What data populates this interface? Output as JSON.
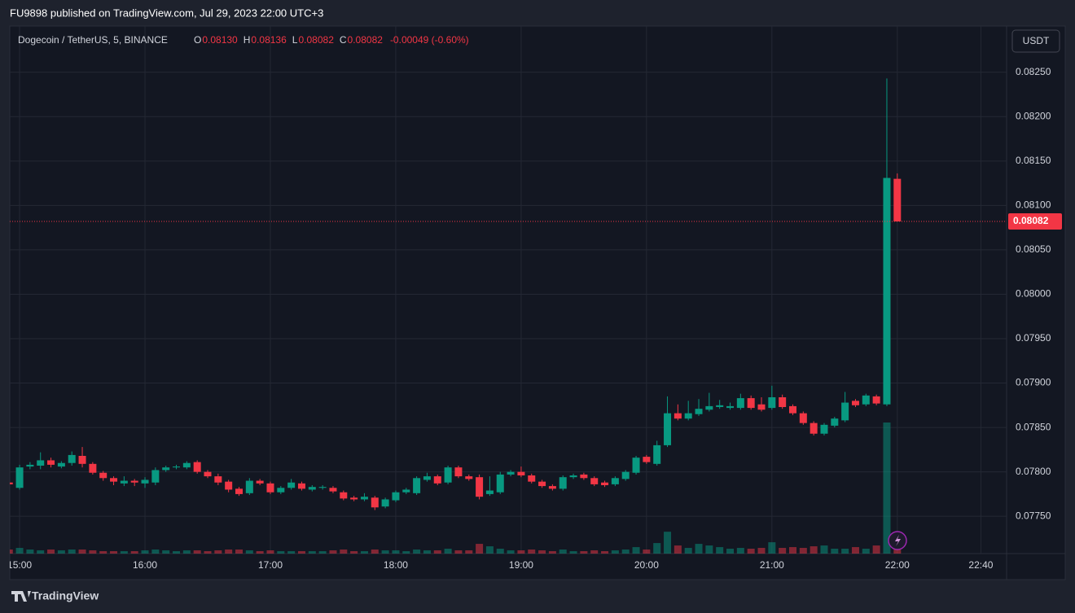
{
  "header": {
    "publisher": "FU9898 published on TradingView.com, Jul 29, 2023 22:00 UTC+3"
  },
  "footer": {
    "brand": "TradingView"
  },
  "chart_data": {
    "type": "candlestick",
    "symbol": "Dogecoin / TetherUS, 5, BINANCE",
    "legend": {
      "open_key": "O",
      "open": "0.08130",
      "high_key": "H",
      "high": "0.08136",
      "low_key": "L",
      "low": "0.08082",
      "close_key": "C",
      "close": "0.08082",
      "change": "-0.00049 (-0.60%)"
    },
    "currency": "USDT",
    "up_color": "#089981",
    "down_color": "#f23645",
    "last_price": {
      "value": 0.08082,
      "label": "0.08082"
    },
    "xlim": [
      895.3,
      1372.3
    ],
    "ylim": [
      0.07708,
      0.08302
    ],
    "xticks": [
      {
        "value": 900,
        "label": "15:00"
      },
      {
        "value": 960,
        "label": "16:00"
      },
      {
        "value": 1020,
        "label": "17:00"
      },
      {
        "value": 1080,
        "label": "18:00"
      },
      {
        "value": 1140,
        "label": "19:00"
      },
      {
        "value": 1200,
        "label": "20:00"
      },
      {
        "value": 1260,
        "label": "21:00"
      },
      {
        "value": 1320,
        "label": "22:00"
      },
      {
        "value": 1360,
        "label": "22:40"
      }
    ],
    "yticks": [
      {
        "value": 0.0775,
        "label": "0.07750"
      },
      {
        "value": 0.078,
        "label": "0.07800"
      },
      {
        "value": 0.0785,
        "label": "0.07850"
      },
      {
        "value": 0.079,
        "label": "0.07900"
      },
      {
        "value": 0.0795,
        "label": "0.07950"
      },
      {
        "value": 0.08,
        "label": "0.08000"
      },
      {
        "value": 0.0805,
        "label": "0.08050"
      },
      {
        "value": 0.081,
        "label": "0.08100"
      },
      {
        "value": 0.0815,
        "label": "0.08150"
      },
      {
        "value": 0.082,
        "label": "0.08200"
      },
      {
        "value": 0.0825,
        "label": "0.08250"
      }
    ],
    "grid": true,
    "x": [
      895,
      900,
      905,
      910,
      915,
      920,
      925,
      930,
      935,
      940,
      945,
      950,
      955,
      960,
      965,
      970,
      975,
      980,
      985,
      990,
      995,
      1000,
      1005,
      1010,
      1015,
      1020,
      1025,
      1030,
      1035,
      1040,
      1045,
      1050,
      1055,
      1060,
      1065,
      1070,
      1075,
      1080,
      1085,
      1090,
      1095,
      1100,
      1105,
      1110,
      1115,
      1120,
      1125,
      1130,
      1135,
      1140,
      1145,
      1150,
      1155,
      1160,
      1165,
      1170,
      1175,
      1180,
      1185,
      1190,
      1195,
      1200,
      1205,
      1210,
      1215,
      1220,
      1225,
      1230,
      1235,
      1240,
      1245,
      1250,
      1255,
      1260,
      1265,
      1270,
      1275,
      1280,
      1285,
      1290,
      1295,
      1300,
      1305,
      1310,
      1315,
      1320
    ],
    "open": [
      0.07788,
      0.07782,
      0.07806,
      0.07807,
      0.07813,
      0.07806,
      0.0781,
      0.07818,
      0.07809,
      0.07799,
      0.07793,
      0.07787,
      0.0779,
      0.07787,
      0.07788,
      0.07802,
      0.07805,
      0.07805,
      0.07811,
      0.078,
      0.07795,
      0.07789,
      0.07781,
      0.07776,
      0.0779,
      0.07787,
      0.07777,
      0.07782,
      0.07787,
      0.0778,
      0.07782,
      0.07782,
      0.07777,
      0.07771,
      0.07769,
      0.07771,
      0.07761,
      0.07768,
      0.07777,
      0.07776,
      0.07791,
      0.07795,
      0.07788,
      0.07805,
      0.07795,
      0.07794,
      0.07775,
      0.07777,
      0.07797,
      0.078,
      0.07796,
      0.07789,
      0.07784,
      0.07781,
      0.07794,
      0.07797,
      0.07793,
      0.07788,
      0.07786,
      0.07792,
      0.07799,
      0.07817,
      0.07809,
      0.0783,
      0.07866,
      0.0786,
      0.07865,
      0.0787,
      0.07873,
      0.07872,
      0.07872,
      0.07883,
      0.07876,
      0.07872,
      0.07884,
      0.07874,
      0.07866,
      0.07855,
      0.07843,
      0.07852,
      0.07858,
      0.0788,
      0.07876,
      0.07885,
      0.07876,
      0.0813
    ],
    "close": [
      0.07786,
      0.07805,
      0.07808,
      0.07813,
      0.07808,
      0.0781,
      0.07819,
      0.07809,
      0.07799,
      0.07793,
      0.07789,
      0.0779,
      0.07788,
      0.07791,
      0.07802,
      0.07805,
      0.07806,
      0.0781,
      0.078,
      0.07795,
      0.07788,
      0.0778,
      0.07775,
      0.0779,
      0.07787,
      0.07777,
      0.07782,
      0.07788,
      0.07781,
      0.07783,
      0.07783,
      0.07778,
      0.0777,
      0.07769,
      0.07772,
      0.0776,
      0.07769,
      0.07777,
      0.0778,
      0.07793,
      0.07795,
      0.07787,
      0.07805,
      0.07795,
      0.07792,
      0.07772,
      0.07779,
      0.07797,
      0.078,
      0.07796,
      0.07789,
      0.07784,
      0.07781,
      0.07794,
      0.07796,
      0.07793,
      0.07786,
      0.07785,
      0.07793,
      0.078,
      0.07816,
      0.07811,
      0.0783,
      0.07866,
      0.0786,
      0.07866,
      0.07871,
      0.07874,
      0.07875,
      0.07874,
      0.07883,
      0.07872,
      0.0787,
      0.07884,
      0.07873,
      0.07866,
      0.07855,
      0.07843,
      0.07853,
      0.0786,
      0.07878,
      0.07875,
      0.07886,
      0.07877,
      0.08131,
      0.08082
    ],
    "high": [
      0.07791,
      0.07808,
      0.07811,
      0.07822,
      0.07816,
      0.07812,
      0.07823,
      0.07828,
      0.07811,
      0.07801,
      0.07795,
      0.07795,
      0.07792,
      0.07794,
      0.07805,
      0.07807,
      0.07808,
      0.07812,
      0.07813,
      0.07802,
      0.07798,
      0.07791,
      0.07783,
      0.07793,
      0.07792,
      0.07789,
      0.07784,
      0.07792,
      0.07789,
      0.07785,
      0.07785,
      0.07784,
      0.07779,
      0.07773,
      0.07776,
      0.07773,
      0.07771,
      0.07779,
      0.07782,
      0.07795,
      0.07799,
      0.07797,
      0.07807,
      0.07807,
      0.07797,
      0.07797,
      0.07795,
      0.078,
      0.07802,
      0.07806,
      0.07798,
      0.07791,
      0.07786,
      0.07796,
      0.07798,
      0.07799,
      0.07795,
      0.0779,
      0.07795,
      0.07802,
      0.07818,
      0.07819,
      0.07835,
      0.07885,
      0.07876,
      0.0788,
      0.07882,
      0.07889,
      0.07881,
      0.07878,
      0.07888,
      0.07886,
      0.07884,
      0.07897,
      0.07887,
      0.07876,
      0.07868,
      0.07857,
      0.07855,
      0.07862,
      0.0789,
      0.07882,
      0.07888,
      0.07887,
      0.08243,
      0.08136
    ],
    "low": [
      0.07784,
      0.0778,
      0.07803,
      0.07803,
      0.07805,
      0.07804,
      0.07807,
      0.07805,
      0.07797,
      0.0779,
      0.07785,
      0.07784,
      0.07784,
      0.07782,
      0.07785,
      0.078,
      0.07803,
      0.07803,
      0.07798,
      0.07793,
      0.07785,
      0.07777,
      0.07773,
      0.07774,
      0.07785,
      0.07775,
      0.07775,
      0.0778,
      0.07779,
      0.07778,
      0.0778,
      0.07776,
      0.07768,
      0.07767,
      0.07767,
      0.07757,
      0.07759,
      0.07766,
      0.07775,
      0.07774,
      0.07789,
      0.07785,
      0.07786,
      0.07793,
      0.0779,
      0.07769,
      0.07773,
      0.07775,
      0.07795,
      0.07794,
      0.07787,
      0.07782,
      0.07779,
      0.07779,
      0.07792,
      0.07791,
      0.07784,
      0.07783,
      0.07784,
      0.0779,
      0.07797,
      0.07809,
      0.07807,
      0.07828,
      0.07858,
      0.07858,
      0.07863,
      0.07868,
      0.07871,
      0.0787,
      0.0787,
      0.0787,
      0.07868,
      0.0787,
      0.07871,
      0.07864,
      0.07853,
      0.07841,
      0.07841,
      0.0785,
      0.07856,
      0.07873,
      0.07874,
      0.07875,
      0.07874,
      0.08082
    ],
    "volume": [
      5,
      7,
      5,
      4,
      5,
      4,
      5,
      5,
      4,
      3,
      3,
      3,
      3,
      4,
      5,
      4,
      3,
      4,
      4,
      3,
      4,
      5,
      5,
      4,
      3,
      4,
      3,
      3,
      3,
      3,
      3,
      4,
      5,
      3,
      3,
      5,
      4,
      4,
      3,
      5,
      4,
      4,
      6,
      4,
      4,
      12,
      9,
      6,
      4,
      4,
      5,
      4,
      3,
      5,
      3,
      3,
      4,
      3,
      4,
      5,
      8,
      5,
      13,
      27,
      10,
      7,
      12,
      10,
      8,
      6,
      7,
      6,
      7,
      14,
      7,
      8,
      7,
      9,
      10,
      6,
      6,
      8,
      6,
      10,
      162,
      8
    ]
  }
}
